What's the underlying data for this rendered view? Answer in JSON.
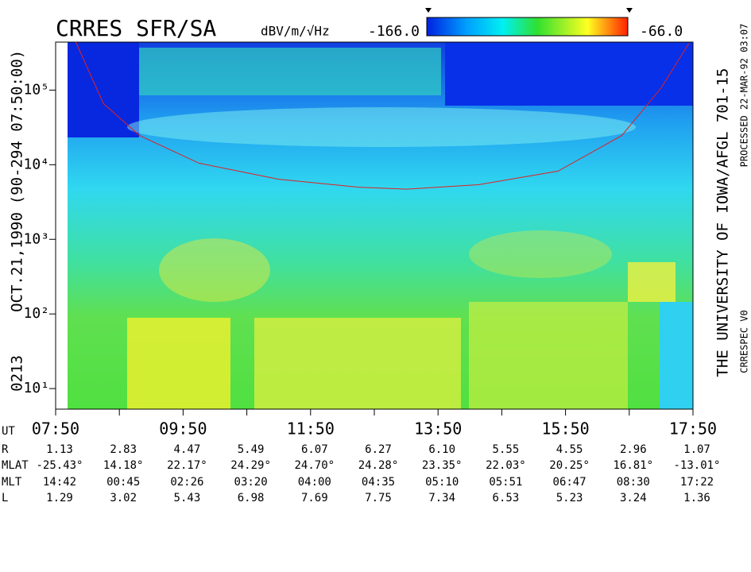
{
  "chart_data": {
    "type": "spectrogram",
    "title": "CRRES SFR/SA",
    "colorbar": {
      "label": "dBV/m/√Hz",
      "range": [
        {
          "value": -166,
          "label": "-166.0"
        },
        {
          "value": -66,
          "label": "-66.0"
        }
      ]
    },
    "side_labels": [
      "0213",
      "OCT.21,1990",
      "(90-294 07:50:00)"
    ],
    "right_labels": [
      "THE UNIVERSITY OF IOWA/AFGL 701-15",
      "CRRESPEC V0",
      "PROCESSED 22-MAR-92  03:07"
    ],
    "log_y": true,
    "xlim": [
      470,
      1070
    ],
    "xticks": [
      {
        "value": 470,
        "label": "07:50"
      },
      {
        "value": 590,
        "label": "09:50"
      },
      {
        "value": 710,
        "label": "11:50"
      },
      {
        "value": 830,
        "label": "13:50"
      },
      {
        "value": 950,
        "label": "15:50"
      },
      {
        "value": 1070,
        "label": "17:50"
      }
    ],
    "xminor_ticks": [
      530,
      650,
      770,
      890,
      1010
    ],
    "ylim": [
      5.3,
      440000
    ],
    "yticks": [
      {
        "value": 10,
        "label": "10¹"
      },
      {
        "value": 100,
        "label": "10²"
      },
      {
        "value": 1000,
        "label": "10³"
      },
      {
        "value": 10000,
        "label": "10⁴"
      },
      {
        "value": 100000,
        "label": "10⁵"
      }
    ],
    "series": [
      {
        "color": "#e02020",
        "x": [
          489,
          515,
          549,
          605,
          680,
          755,
          800,
          868,
          943,
          1003,
          1040,
          1066
        ],
        "values": [
          440000,
          66000,
          24600,
          10500,
          6400,
          5000,
          4700,
          5400,
          8200,
          24600,
          107000,
          420000
        ]
      }
    ],
    "ephemeris": {
      "time_label": "UT",
      "rows": [
        {
          "label": "R",
          "values": [
            "1.13",
            "2.83",
            "4.47",
            "5.49",
            "6.07",
            "6.27",
            "6.10",
            "5.55",
            "4.55",
            "2.96",
            "1.07"
          ]
        },
        {
          "label": "MLAT",
          "values": [
            "-25.43°",
            "14.18°",
            "22.17°",
            "24.29°",
            "24.70°",
            "24.28°",
            "23.35°",
            "22.03°",
            "20.25°",
            "16.81°",
            "-13.01°"
          ]
        },
        {
          "label": "MLT",
          "values": [
            "14:42",
            "00:45",
            "02:26",
            "03:20",
            "04:00",
            "04:35",
            "05:10",
            "05:51",
            "06:47",
            "08:30",
            "17:22"
          ]
        },
        {
          "label": "L",
          "values": [
            "1.29",
            "3.02",
            "5.43",
            "6.98",
            "7.69",
            "7.75",
            "7.34",
            "6.53",
            "5.23",
            "3.24",
            "1.36"
          ]
        }
      ]
    }
  }
}
